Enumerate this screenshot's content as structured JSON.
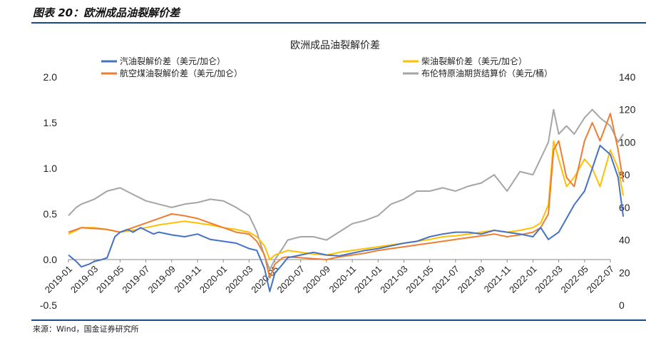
{
  "figure": {
    "title": "图表 20：欧洲成品油裂解价差",
    "source": "来源：Wind，国金证券研究所"
  },
  "chart_data": {
    "type": "line",
    "title": "欧洲成品油裂解价差",
    "xlabel": "",
    "ylabel": "",
    "x_ticks": [
      "2019-01",
      "2019-03",
      "2019-05",
      "2019-07",
      "2019-09",
      "2019-11",
      "2020-01",
      "2020-03",
      "2020-05",
      "2020-07",
      "2020-09",
      "2020-11",
      "2021-01",
      "2021-03",
      "2021-05",
      "2021-07",
      "2021-09",
      "2021-11",
      "2022-01",
      "2022-03",
      "2022-05",
      "2022-07"
    ],
    "y_left": {
      "ticks": [
        "2.0",
        "1.5",
        "1.0",
        "0.5",
        "0.0",
        "-0.5"
      ],
      "lim": [
        -0.5,
        2.0
      ]
    },
    "y_right": {
      "ticks": [
        "140",
        "120",
        "100",
        "80",
        "60",
        "40",
        "20",
        "0"
      ],
      "lim": [
        0,
        140
      ]
    },
    "legend_position": "top",
    "grid": false,
    "series": [
      {
        "name": "汽油裂解价差（美元/加仑）",
        "axis": "left",
        "color": "#4472c4",
        "x": [
          0,
          0.3,
          0.5,
          0.8,
          1,
          1.3,
          1.5,
          1.8,
          2,
          2.3,
          2.5,
          2.8,
          3,
          3.3,
          3.5,
          4,
          4.5,
          5,
          5.5,
          6,
          6.5,
          7,
          7.3,
          7.6,
          7.8,
          8,
          8.3,
          8.5,
          9,
          9.5,
          10,
          10.5,
          11,
          11.5,
          12,
          12.5,
          13,
          13.5,
          14,
          14.5,
          15,
          15.5,
          16,
          16.5,
          17,
          17.5,
          18,
          18.3,
          18.6,
          19,
          19.3,
          19.6,
          20,
          20.3,
          20.6,
          21,
          21.3,
          21.5
        ],
        "y": [
          0.05,
          -0.02,
          -0.08,
          -0.05,
          -0.02,
          0.0,
          0.02,
          0.25,
          0.3,
          0.33,
          0.3,
          0.35,
          0.32,
          0.28,
          0.3,
          0.27,
          0.25,
          0.28,
          0.22,
          0.2,
          0.18,
          0.12,
          0.1,
          -0.1,
          -0.35,
          -0.15,
          -0.05,
          0.02,
          0.05,
          0.08,
          0.05,
          0.04,
          0.07,
          0.1,
          0.12,
          0.15,
          0.18,
          0.2,
          0.25,
          0.28,
          0.3,
          0.3,
          0.28,
          0.32,
          0.3,
          0.28,
          0.25,
          0.35,
          0.22,
          0.3,
          0.45,
          0.6,
          0.75,
          1.0,
          1.25,
          1.15,
          0.9,
          0.47
        ]
      },
      {
        "name": "柴油裂解价差（美元/加仑）",
        "axis": "left",
        "color": "#ffc000",
        "x": [
          0,
          0.3,
          0.5,
          1,
          1.5,
          2,
          2.5,
          3,
          3.5,
          4,
          4.5,
          5,
          5.5,
          6,
          6.5,
          7,
          7.3,
          7.6,
          7.8,
          8,
          8.3,
          8.5,
          9,
          9.5,
          10,
          10.5,
          11,
          11.5,
          12,
          12.5,
          13,
          13.5,
          14,
          14.5,
          15,
          15.5,
          16,
          16.5,
          17,
          17.5,
          18,
          18.3,
          18.6,
          18.8,
          19,
          19.3,
          19.6,
          20,
          20.3,
          20.6,
          21,
          21.3,
          21.5
        ],
        "y": [
          0.28,
          0.32,
          0.35,
          0.35,
          0.33,
          0.3,
          0.32,
          0.35,
          0.38,
          0.4,
          0.42,
          0.4,
          0.38,
          0.35,
          0.33,
          0.3,
          0.25,
          0.15,
          0.0,
          0.05,
          0.08,
          0.1,
          0.08,
          0.06,
          0.05,
          0.08,
          0.1,
          0.12,
          0.14,
          0.16,
          0.18,
          0.2,
          0.22,
          0.25,
          0.26,
          0.28,
          0.3,
          0.32,
          0.3,
          0.32,
          0.35,
          0.4,
          0.6,
          1.3,
          1.1,
          0.8,
          0.9,
          1.1,
          1.0,
          0.8,
          1.2,
          1.0,
          0.7
        ]
      },
      {
        "name": "航空煤油裂解价差（美元/加仑）",
        "axis": "left",
        "color": "#ed7d31",
        "x": [
          0,
          0.3,
          0.5,
          1,
          1.5,
          2,
          2.5,
          3,
          3.5,
          4,
          4.5,
          5,
          5.5,
          6,
          6.5,
          7,
          7.3,
          7.6,
          7.8,
          8,
          8.3,
          8.5,
          9,
          9.5,
          10,
          10.5,
          11,
          11.5,
          12,
          12.5,
          13,
          13.5,
          14,
          14.5,
          15,
          15.5,
          16,
          16.5,
          17,
          17.5,
          18,
          18.3,
          18.6,
          18.8,
          19,
          19.3,
          19.6,
          20,
          20.3,
          20.6,
          21,
          21.3,
          21.5
        ],
        "y": [
          0.3,
          0.33,
          0.35,
          0.34,
          0.33,
          0.3,
          0.35,
          0.4,
          0.45,
          0.5,
          0.48,
          0.45,
          0.4,
          0.35,
          0.3,
          0.28,
          0.2,
          0.05,
          -0.2,
          -0.05,
          0.02,
          0.03,
          0.02,
          0.01,
          0.0,
          0.03,
          0.05,
          0.07,
          0.1,
          0.12,
          0.14,
          0.16,
          0.18,
          0.2,
          0.22,
          0.24,
          0.26,
          0.28,
          0.25,
          0.27,
          0.3,
          0.35,
          0.5,
          1.2,
          1.3,
          0.9,
          0.8,
          1.3,
          1.5,
          1.3,
          1.6,
          1.2,
          0.85
        ]
      },
      {
        "name": "布伦特原油期货结算价（美元/桶）",
        "axis": "right",
        "color": "#a5a5a5",
        "x": [
          0,
          0.3,
          0.5,
          1,
          1.5,
          2,
          2.5,
          3,
          3.5,
          4,
          4.5,
          5,
          5.5,
          6,
          6.5,
          7,
          7.3,
          7.6,
          7.8,
          8,
          8.3,
          8.5,
          9,
          9.5,
          10,
          10.5,
          11,
          11.5,
          12,
          12.5,
          13,
          13.5,
          14,
          14.5,
          15,
          15.5,
          16,
          16.5,
          17,
          17.5,
          18,
          18.3,
          18.6,
          18.8,
          19,
          19.3,
          19.6,
          20,
          20.3,
          20.6,
          21,
          21.3,
          21.5
        ],
        "y": [
          55,
          60,
          62,
          65,
          70,
          72,
          68,
          64,
          62,
          60,
          62,
          63,
          65,
          64,
          60,
          55,
          45,
          30,
          22,
          28,
          35,
          40,
          42,
          42,
          40,
          45,
          50,
          52,
          55,
          62,
          65,
          70,
          70,
          72,
          70,
          73,
          75,
          80,
          70,
          82,
          80,
          90,
          100,
          120,
          105,
          110,
          105,
          115,
          120,
          115,
          110,
          100,
          105
        ]
      }
    ]
  }
}
